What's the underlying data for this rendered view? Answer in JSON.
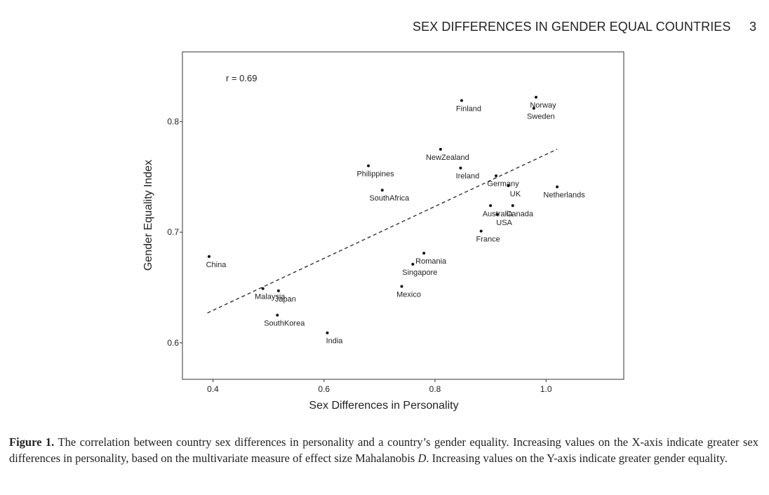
{
  "header": {
    "running_title": "SEX DIFFERENCES IN GENDER EQUAL COUNTRIES",
    "page_number": "3"
  },
  "chart_data": {
    "type": "scatter",
    "title": "",
    "annotation": "r = 0.69",
    "xlabel": "Sex Differences in Personality",
    "ylabel": "Gender Equality Index",
    "xlim": [
      0.345,
      1.14
    ],
    "ylim": [
      0.567,
      0.863
    ],
    "x_ticks": [
      0.4,
      0.6,
      0.8,
      1.0
    ],
    "x_tick_labels": [
      "0.4",
      "0.6",
      "0.8",
      "1.0"
    ],
    "y_ticks": [
      0.6,
      0.7,
      0.8
    ],
    "y_tick_labels": [
      "0.6",
      "0.7",
      "0.8"
    ],
    "grid": false,
    "trend_line": {
      "style": "dashed",
      "x": [
        0.39,
        1.02
      ],
      "y": [
        0.627,
        0.775
      ]
    },
    "points": [
      {
        "label": "China",
        "x": 0.393,
        "y": 0.678
      },
      {
        "label": "Malaysia",
        "x": 0.49,
        "y": 0.649
      },
      {
        "label": "Japan",
        "x": 0.518,
        "y": 0.647
      },
      {
        "label": "SouthKorea",
        "x": 0.516,
        "y": 0.625
      },
      {
        "label": "India",
        "x": 0.606,
        "y": 0.609
      },
      {
        "label": "Philippines",
        "x": 0.68,
        "y": 0.76
      },
      {
        "label": "SouthAfrica",
        "x": 0.705,
        "y": 0.738
      },
      {
        "label": "Mexico",
        "x": 0.74,
        "y": 0.651
      },
      {
        "label": "Singapore",
        "x": 0.76,
        "y": 0.671
      },
      {
        "label": "Romania",
        "x": 0.78,
        "y": 0.681
      },
      {
        "label": "NewZealand",
        "x": 0.81,
        "y": 0.775
      },
      {
        "label": "Finland",
        "x": 0.848,
        "y": 0.819
      },
      {
        "label": "Ireland",
        "x": 0.846,
        "y": 0.758
      },
      {
        "label": "France",
        "x": 0.883,
        "y": 0.701
      },
      {
        "label": "Australia",
        "x": 0.9,
        "y": 0.724
      },
      {
        "label": "USA",
        "x": 0.912,
        "y": 0.716
      },
      {
        "label": "Germany",
        "x": 0.91,
        "y": 0.751
      },
      {
        "label": "UK",
        "x": 0.932,
        "y": 0.742
      },
      {
        "label": "Canada",
        "x": 0.94,
        "y": 0.724
      },
      {
        "label": "Norway",
        "x": 0.982,
        "y": 0.822
      },
      {
        "label": "Sweden",
        "x": 0.978,
        "y": 0.812
      },
      {
        "label": "Netherlands",
        "x": 1.02,
        "y": 0.741
      }
    ]
  },
  "caption": {
    "label": "Figure 1.",
    "text_before_d": "The correlation between country sex differences in personality and a country’s gender equality. Increasing values on the X-axis indicate greater sex differences in personality, based on the multivariate measure of effect size Mahalanobis",
    "d_symbol": "D",
    "text_after_d": ". Increasing values on the Y-axis indicate greater gender equality."
  }
}
